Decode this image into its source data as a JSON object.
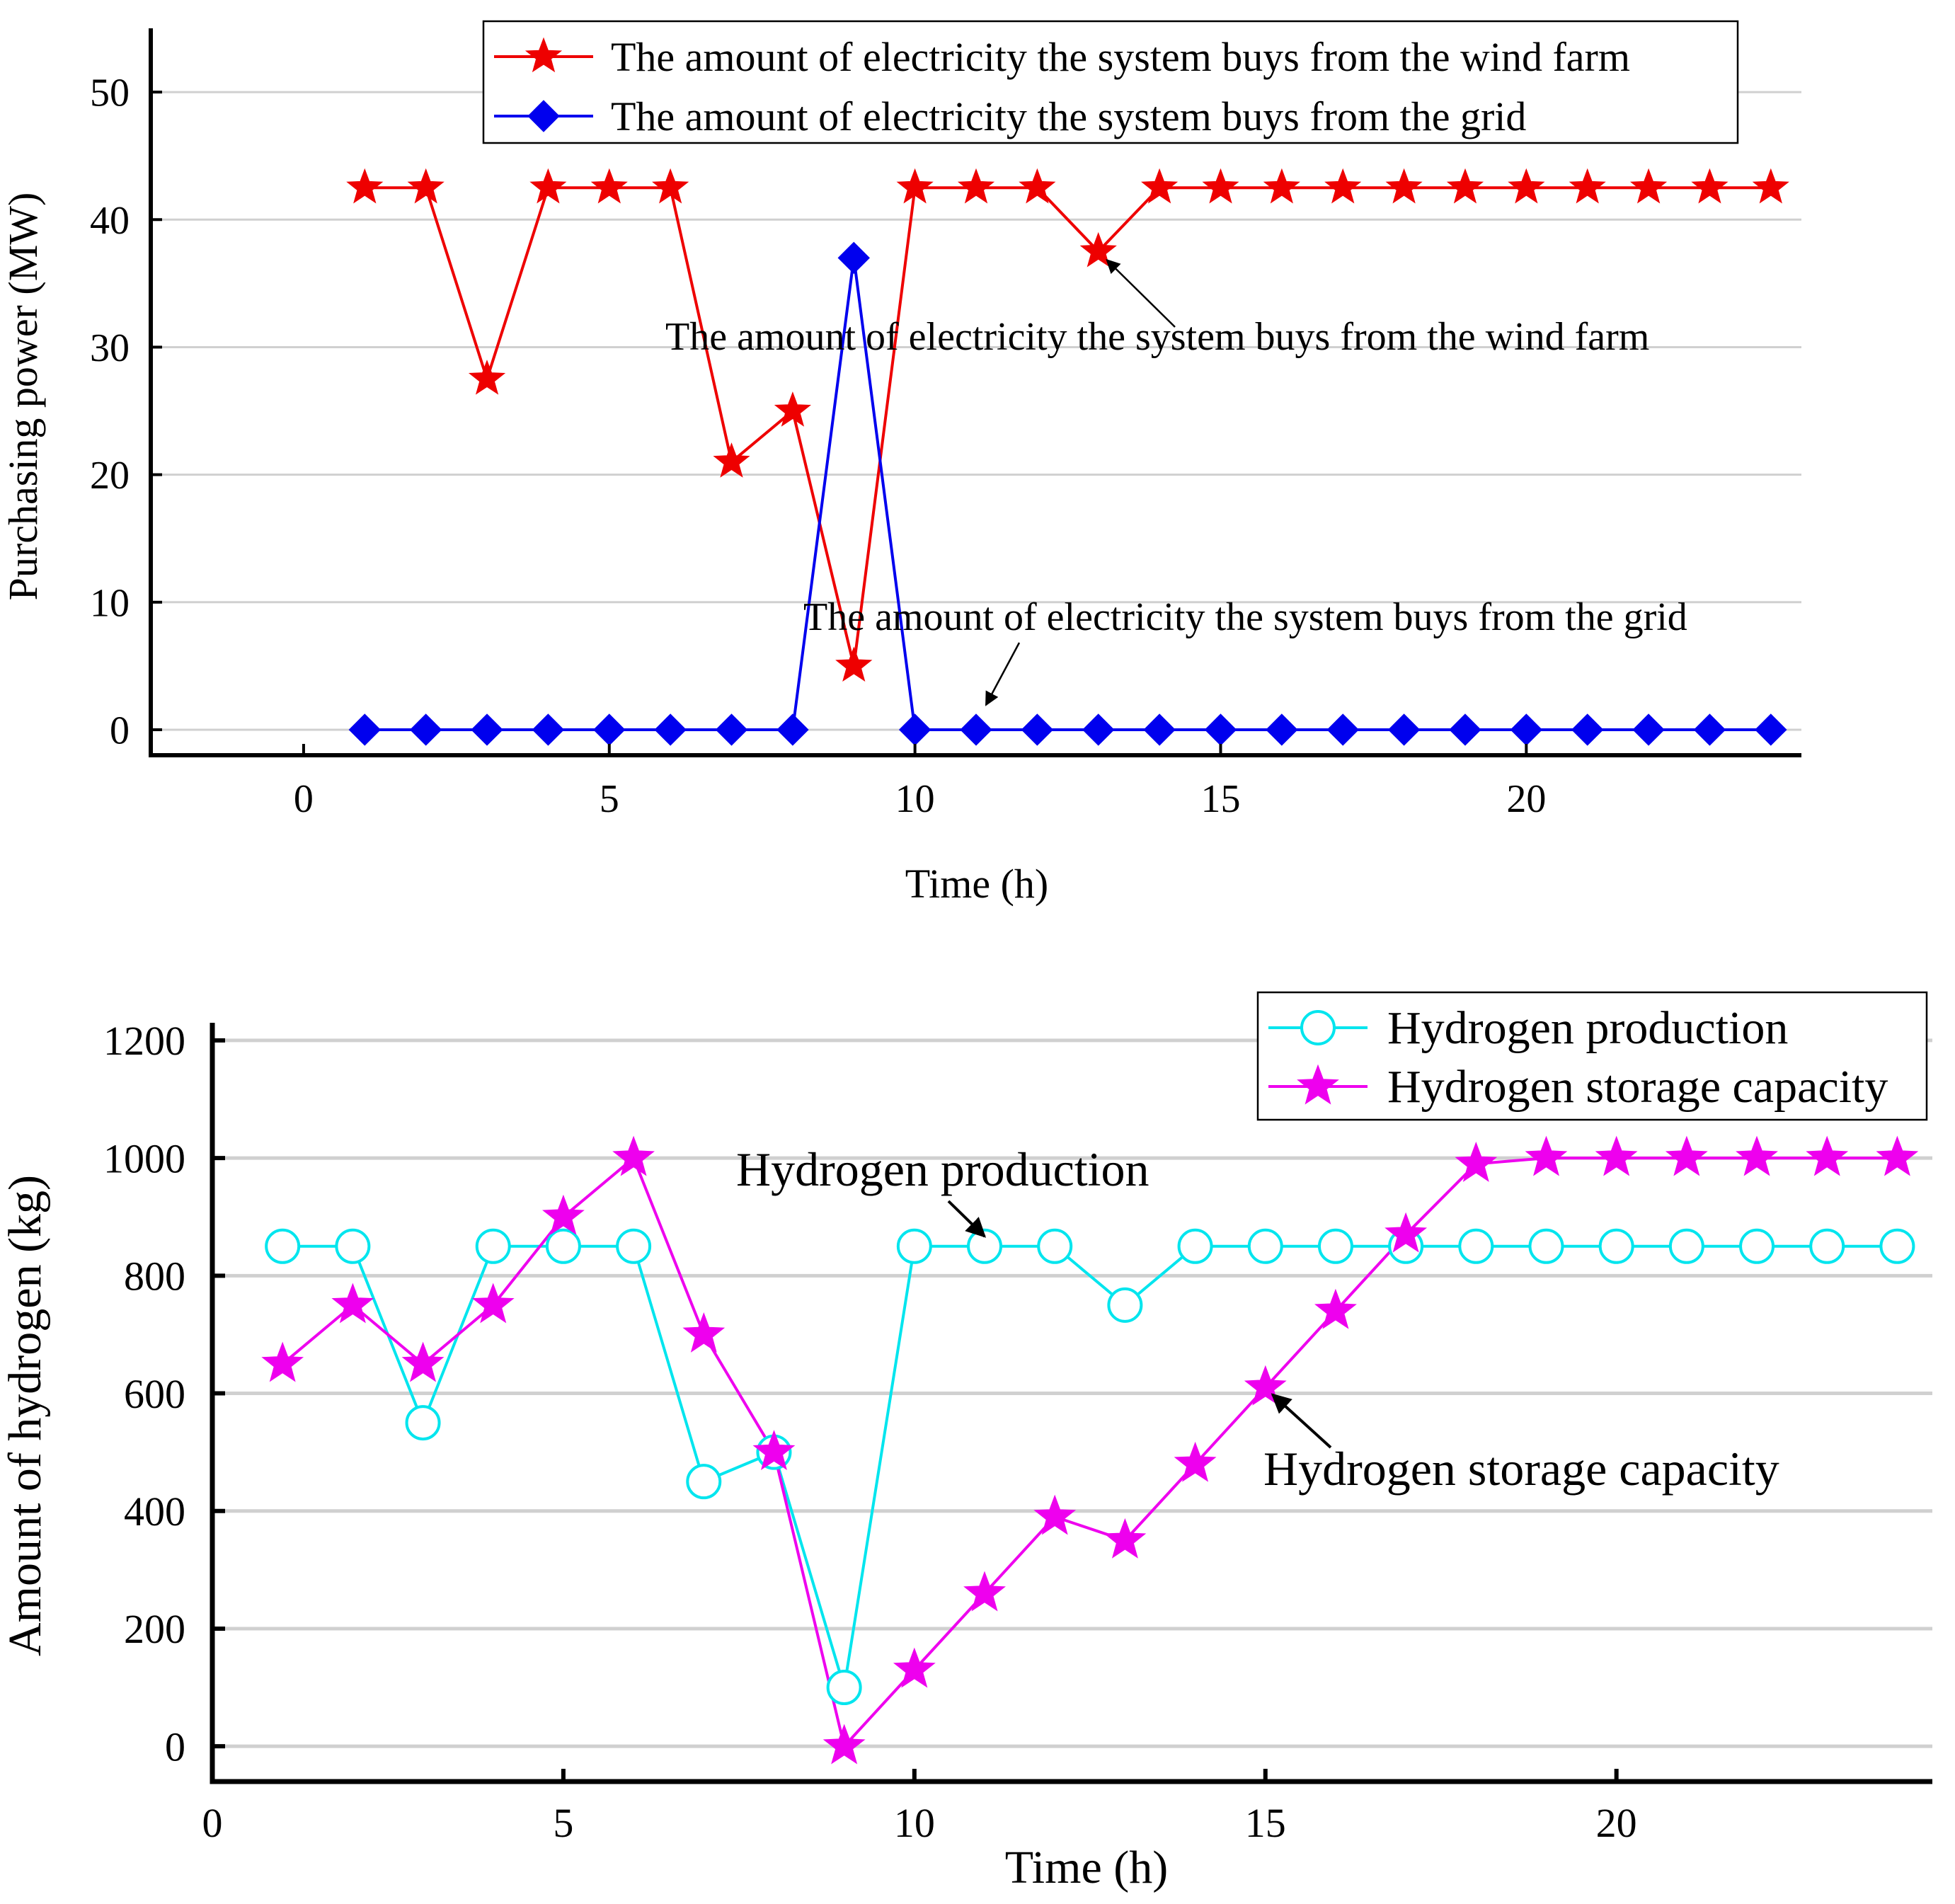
{
  "chart_data": [
    {
      "type": "line",
      "title": "",
      "xlabel": "Time (h)",
      "ylabel": "Purchasing power (MW)",
      "xlim": [
        -2.5,
        24.5
      ],
      "ylim": [
        -2,
        55
      ],
      "xticks": [
        0,
        5,
        10,
        15,
        20
      ],
      "yticks": [
        0,
        10,
        20,
        30,
        40,
        50
      ],
      "grid": "horizontal",
      "legend_position": "top-right",
      "x": [
        1,
        2,
        3,
        4,
        5,
        6,
        7,
        8,
        9,
        10,
        11,
        12,
        13,
        14,
        15,
        16,
        17,
        18,
        19,
        20,
        21,
        22,
        23,
        24
      ],
      "series": [
        {
          "name": "The amount of electricity the system buys from the wind farm",
          "color": "#ee0000",
          "marker": "star",
          "values": [
            42.5,
            42.5,
            27.5,
            42.5,
            42.5,
            42.5,
            21,
            25,
            5,
            42.5,
            42.5,
            42.5,
            37.5,
            42.5,
            42.5,
            42.5,
            42.5,
            42.5,
            42.5,
            42.5,
            42.5,
            42.5,
            42.5,
            42.5
          ]
        },
        {
          "name": "The amount of electricity the system buys from the grid",
          "color": "#0000ee",
          "marker": "diamond",
          "values": [
            0,
            0,
            0,
            0,
            0,
            0,
            0,
            0,
            37,
            0,
            0,
            0,
            0,
            0,
            0,
            0,
            0,
            0,
            0,
            0,
            0,
            0,
            0,
            0
          ]
        }
      ],
      "annotations": [
        {
          "text": "The amount of electricity the system buys from the wind farm",
          "target_x": 13,
          "target_y": 37.5
        },
        {
          "text": "The amount of electricity the system buys from the grid",
          "target_x": 11,
          "target_y": 1.5
        }
      ]
    },
    {
      "type": "line",
      "title": "",
      "xlabel": "Time (h)",
      "ylabel": "Amount of hydrogen (kg)",
      "xlim": [
        0,
        24.5
      ],
      "ylim": [
        -60,
        1230
      ],
      "xticks": [
        0,
        5,
        10,
        15,
        20
      ],
      "yticks": [
        0,
        200,
        400,
        600,
        800,
        1000,
        1200
      ],
      "grid": "horizontal",
      "legend_position": "top-right",
      "x": [
        1,
        2,
        3,
        4,
        5,
        6,
        7,
        8,
        9,
        10,
        11,
        12,
        13,
        14,
        15,
        16,
        17,
        18,
        19,
        20,
        21,
        22,
        23,
        24
      ],
      "series": [
        {
          "name": "Hydrogen production",
          "color": "#00e5ee",
          "marker": "circle",
          "values": [
            850,
            850,
            550,
            850,
            850,
            850,
            450,
            500,
            100,
            850,
            850,
            850,
            750,
            850,
            850,
            850,
            850,
            850,
            850,
            850,
            850,
            850,
            850,
            850
          ]
        },
        {
          "name": "Hydrogen storage capacity",
          "color": "#ee00ee",
          "marker": "star",
          "values": [
            650,
            750,
            650,
            750,
            900,
            1000,
            700,
            500,
            0,
            130,
            260,
            390,
            350,
            480,
            610,
            740,
            870,
            990,
            1000,
            1000,
            1000,
            1000,
            1000,
            1000
          ]
        }
      ],
      "annotations": [
        {
          "text": "Hydrogen production",
          "target_x": 11,
          "target_y": 850
        },
        {
          "text": "Hydrogen storage capacity",
          "target_x": 15,
          "target_y": 610
        }
      ]
    }
  ]
}
